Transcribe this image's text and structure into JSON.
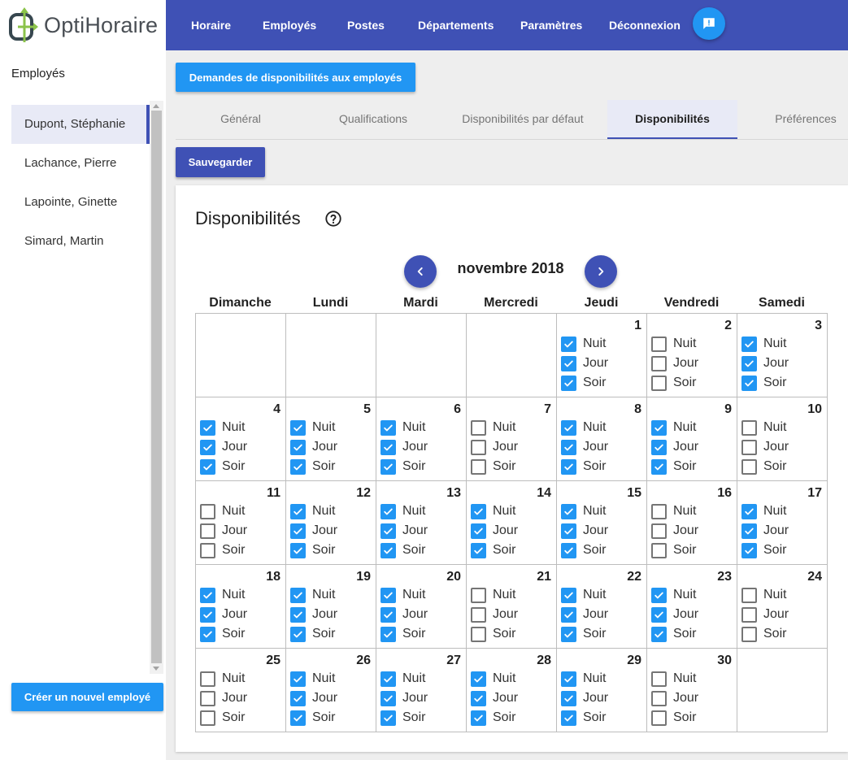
{
  "app": {
    "logo_text": "OptiHoraire"
  },
  "nav": {
    "items": [
      "Horaire",
      "Employés",
      "Postes",
      "Départements",
      "Paramètres",
      "Déconnexion"
    ],
    "feedback_icon": "chat-alert-icon"
  },
  "sidebar": {
    "title": "Employés",
    "employees": [
      "Dupont, Stéphanie",
      "Lachance, Pierre",
      "Lapointe, Ginette",
      "Simard, Martin"
    ],
    "selected_index": 0,
    "create_button": "Créer un nouvel employé"
  },
  "main": {
    "request_button": "Demandes de disponibilités aux employés",
    "tabs": [
      "Général",
      "Qualifications",
      "Disponibilités par défaut",
      "Disponibilités",
      "Préférences"
    ],
    "active_tab": 3,
    "save_button": "Sauvegarder"
  },
  "availability": {
    "title": "Disponibilités",
    "month_label": "novembre 2018",
    "weekdays": [
      "Dimanche",
      "Lundi",
      "Mardi",
      "Mercredi",
      "Jeudi",
      "Vendredi",
      "Samedi"
    ],
    "shift_labels": [
      "Nuit",
      "Jour",
      "Soir"
    ],
    "first_weekday_index": 4,
    "days": [
      {
        "day": "1",
        "checked": [
          true,
          true,
          true
        ]
      },
      {
        "day": "2",
        "checked": [
          false,
          false,
          false
        ]
      },
      {
        "day": "3",
        "checked": [
          true,
          true,
          true
        ]
      },
      {
        "day": "4",
        "checked": [
          true,
          true,
          true
        ]
      },
      {
        "day": "5",
        "checked": [
          true,
          true,
          true
        ]
      },
      {
        "day": "6",
        "checked": [
          true,
          true,
          true
        ]
      },
      {
        "day": "7",
        "checked": [
          false,
          false,
          false
        ]
      },
      {
        "day": "8",
        "checked": [
          true,
          true,
          true
        ]
      },
      {
        "day": "9",
        "checked": [
          true,
          true,
          true
        ]
      },
      {
        "day": "10",
        "checked": [
          false,
          false,
          false
        ]
      },
      {
        "day": "11",
        "checked": [
          false,
          false,
          false
        ]
      },
      {
        "day": "12",
        "checked": [
          true,
          true,
          true
        ]
      },
      {
        "day": "13",
        "checked": [
          true,
          true,
          true
        ]
      },
      {
        "day": "14",
        "checked": [
          true,
          true,
          true
        ]
      },
      {
        "day": "15",
        "checked": [
          true,
          true,
          true
        ]
      },
      {
        "day": "16",
        "checked": [
          false,
          false,
          false
        ]
      },
      {
        "day": "17",
        "checked": [
          true,
          true,
          true
        ]
      },
      {
        "day": "18",
        "checked": [
          true,
          true,
          true
        ]
      },
      {
        "day": "19",
        "checked": [
          true,
          true,
          true
        ]
      },
      {
        "day": "20",
        "checked": [
          true,
          true,
          true
        ]
      },
      {
        "day": "21",
        "checked": [
          false,
          false,
          false
        ]
      },
      {
        "day": "22",
        "checked": [
          true,
          true,
          true
        ]
      },
      {
        "day": "23",
        "checked": [
          true,
          true,
          true
        ]
      },
      {
        "day": "24",
        "checked": [
          false,
          false,
          false
        ]
      },
      {
        "day": "25",
        "checked": [
          false,
          false,
          false
        ]
      },
      {
        "day": "26",
        "checked": [
          true,
          true,
          true
        ]
      },
      {
        "day": "27",
        "checked": [
          true,
          true,
          true
        ]
      },
      {
        "day": "28",
        "checked": [
          true,
          true,
          true
        ]
      },
      {
        "day": "29",
        "checked": [
          true,
          true,
          true
        ]
      },
      {
        "day": "30",
        "checked": [
          false,
          false,
          false
        ]
      }
    ]
  },
  "colors": {
    "primary": "#3f51b5",
    "accent": "#2196f3",
    "logo_green": "#8bc34a",
    "logo_dark": "#37474f"
  }
}
